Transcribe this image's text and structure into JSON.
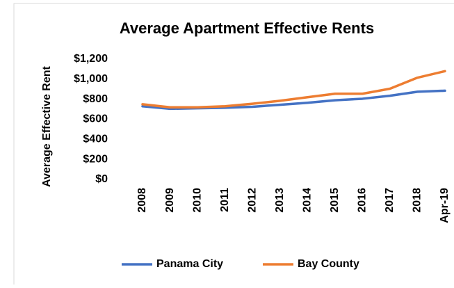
{
  "chart_data": {
    "type": "line",
    "title": "Average Apartment Effective Rents",
    "y_label": "Average Effective Rent",
    "categories": [
      "2008",
      "2009",
      "2010",
      "2011",
      "2012",
      "2013",
      "2014",
      "2015",
      "2016",
      "2017",
      "2018",
      "Apr-19"
    ],
    "series": [
      {
        "name": "Panama City",
        "color": "#4472c4",
        "values": [
          730,
          705,
          710,
          715,
          725,
          745,
          765,
          790,
          805,
          835,
          875,
          885
        ]
      },
      {
        "name": "Bay County",
        "color": "#ed7d31",
        "values": [
          750,
          720,
          720,
          730,
          755,
          785,
          820,
          855,
          855,
          905,
          1015,
          1080
        ]
      }
    ],
    "ylim": [
      0,
      1200
    ],
    "yticks": [
      {
        "value": 0,
        "label": "$0"
      },
      {
        "value": 200,
        "label": "$200"
      },
      {
        "value": 400,
        "label": "$400"
      },
      {
        "value": 600,
        "label": "$600"
      },
      {
        "value": 800,
        "label": "$800"
      },
      {
        "value": 1000,
        "label": "$1,000"
      },
      {
        "value": 1200,
        "label": "$1,200"
      }
    ],
    "legend": "bottom"
  }
}
